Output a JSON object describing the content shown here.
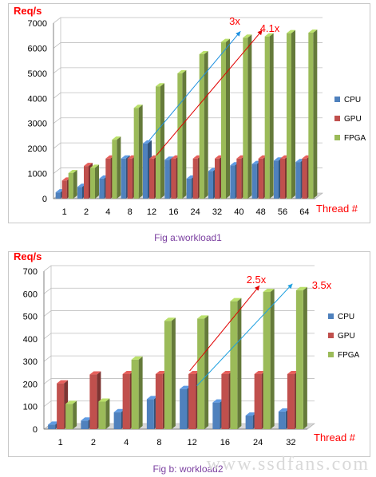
{
  "chart_data": [
    {
      "type": "bar",
      "title": "",
      "ylabel": "Req/s",
      "xlabel": "Thread #",
      "categories": [
        "1",
        "2",
        "4",
        "8",
        "12",
        "16",
        "24",
        "32",
        "40",
        "48",
        "56",
        "64"
      ],
      "ylim": [
        0,
        7000
      ],
      "yticks": [
        "0",
        "1000",
        "2000",
        "3000",
        "4000",
        "5000",
        "6000",
        "7000"
      ],
      "grid": true,
      "legend_position": "right",
      "series": [
        {
          "name": "CPU",
          "color": "#4f81bd",
          "values": [
            250,
            470,
            800,
            1600,
            2200,
            1550,
            800,
            1100,
            1330,
            1380,
            1520,
            1460
          ]
        },
        {
          "name": "GPU",
          "color": "#c0504d",
          "values": [
            720,
            1300,
            1600,
            1600,
            1600,
            1600,
            1600,
            1600,
            1600,
            1600,
            1600,
            1600
          ]
        },
        {
          "name": "FPGA",
          "color": "#9bbb59",
          "values": [
            1020,
            1230,
            2350,
            3620,
            4480,
            5000,
            5760,
            6250,
            6420,
            6470,
            6600,
            6620
          ]
        }
      ],
      "annotations": [
        {
          "text": "3x",
          "color": "#ff0000",
          "arrow_color": "#1e90e0",
          "from": [
            "12",
            2200
          ],
          "to": [
            "40",
            6420
          ]
        },
        {
          "text": "4.1x",
          "color": "#ff0000",
          "arrow_color": "#e00000",
          "from": [
            "12",
            1600
          ],
          "to": [
            "48",
            6470
          ]
        }
      ]
    },
    {
      "type": "bar",
      "title": "",
      "ylabel": "Req/s",
      "xlabel": "Thread #",
      "categories": [
        "1",
        "2",
        "4",
        "8",
        "12",
        "16",
        "24",
        "32"
      ],
      "ylim": [
        0,
        700
      ],
      "yticks": [
        "0",
        "100",
        "200",
        "300",
        "400",
        "500",
        "600",
        "700"
      ],
      "grid": true,
      "legend_position": "right",
      "series": [
        {
          "name": "CPU",
          "color": "#4f81bd",
          "values": [
            20,
            38,
            75,
            133,
            178,
            118,
            60,
            78
          ]
        },
        {
          "name": "GPU",
          "color": "#c0504d",
          "values": [
            203,
            242,
            244,
            244,
            244,
            244,
            244,
            244
          ]
        },
        {
          "name": "FPGA",
          "color": "#9bbb59",
          "values": [
            112,
            122,
            308,
            480,
            490,
            567,
            608,
            616
          ]
        }
      ],
      "annotations": [
        {
          "text": "2.5x",
          "color": "#ff0000",
          "arrow_color": "#e00000",
          "from": [
            "12",
            244
          ],
          "to": [
            "24",
            608
          ]
        },
        {
          "text": "3.5x",
          "color": "#ff0000",
          "arrow_color": "#1ea0e0",
          "from": [
            "12",
            178
          ],
          "to": [
            "32",
            616
          ]
        }
      ]
    }
  ],
  "captions": {
    "a": "Fig a:workload1",
    "b": "Fig b: workload2"
  },
  "watermark": "www.ssdfans.com"
}
